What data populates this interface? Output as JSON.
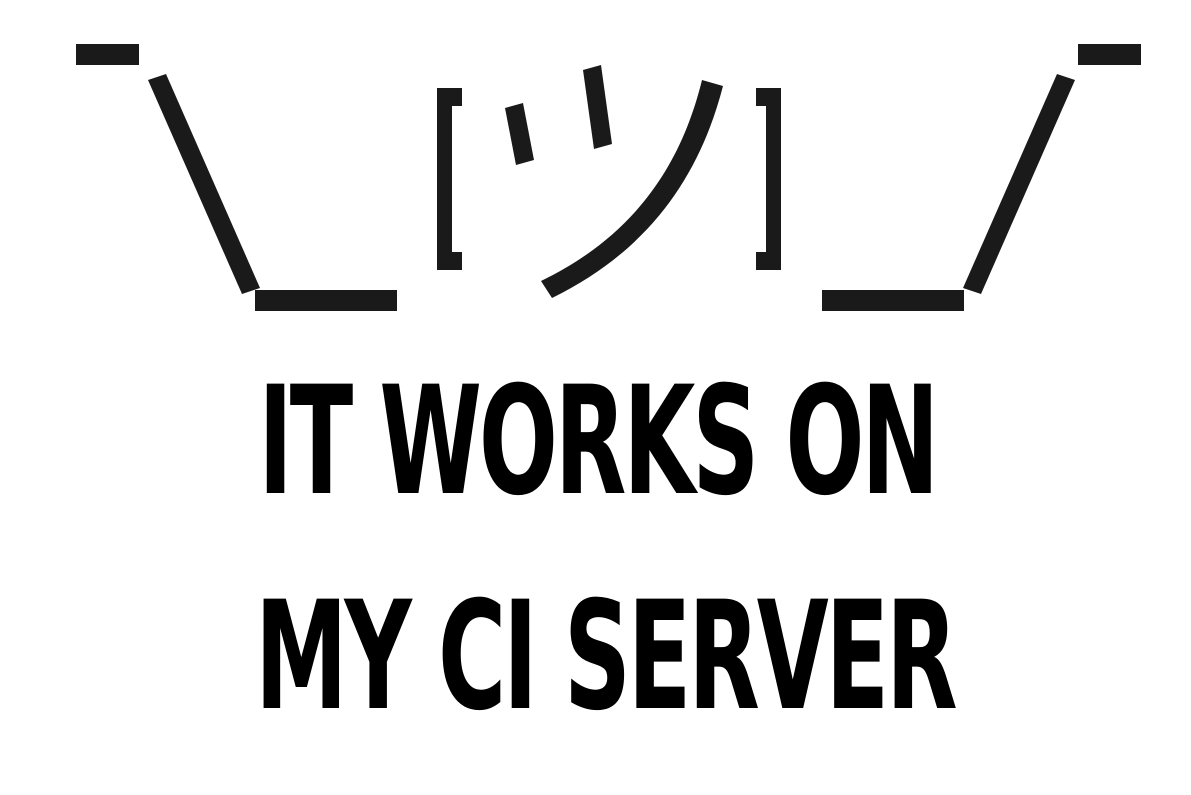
{
  "shrug_emoticon": {
    "icon": "shrug-emoticon-icon",
    "glyph_text": "¯\\_(ツ)_/¯",
    "color": "#1a1a1a"
  },
  "caption": {
    "line1": "IT WORKS ON",
    "line2": "MY CI SERVER",
    "color": "#000000"
  },
  "background_color": "#ffffff"
}
